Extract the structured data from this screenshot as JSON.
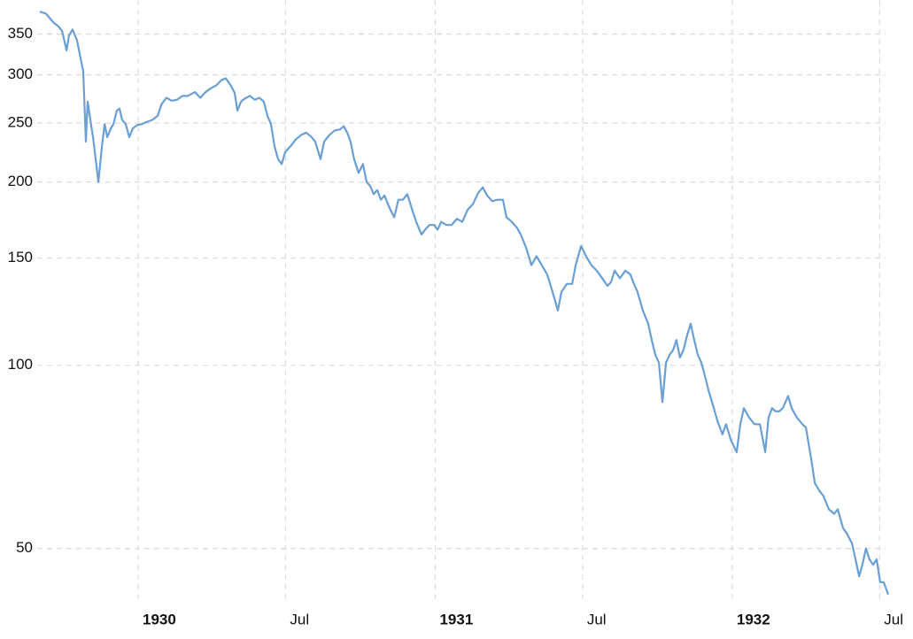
{
  "chart_data": {
    "type": "line",
    "log_y": true,
    "grid": true,
    "xlim": [
      1929.669,
      1932.525
    ],
    "ylim": [
      41,
      385
    ],
    "xticks": [
      1930,
      {
        "value": 1930.496,
        "label": "Jul"
      },
      1931,
      {
        "value": 1931.496,
        "label": "Jul"
      },
      1932,
      {
        "value": 1932.496,
        "label": "Jul"
      }
    ],
    "yticks": [
      50,
      100,
      150,
      200,
      250,
      300,
      350
    ],
    "x": [
      1929.669,
      1929.69,
      1929.714,
      1929.732,
      1929.744,
      1929.759,
      1929.767,
      1929.779,
      1929.794,
      1929.803,
      1929.815,
      1929.824,
      1929.83,
      1929.839,
      1929.848,
      1929.857,
      1929.866,
      1929.878,
      1929.887,
      1929.896,
      1929.908,
      1929.917,
      1929.928,
      1929.937,
      1929.946,
      1929.958,
      1929.97,
      1929.982,
      1929.997,
      1930.012,
      1930.03,
      1930.048,
      1930.066,
      1930.078,
      1930.095,
      1930.113,
      1930.131,
      1930.149,
      1930.167,
      1930.191,
      1930.209,
      1930.227,
      1930.244,
      1930.262,
      1930.28,
      1930.295,
      1930.31,
      1930.325,
      1930.334,
      1930.346,
      1930.358,
      1930.376,
      1930.393,
      1930.408,
      1930.423,
      1930.435,
      1930.447,
      1930.459,
      1930.471,
      1930.483,
      1930.495,
      1930.513,
      1930.531,
      1930.549,
      1930.566,
      1930.584,
      1930.596,
      1930.614,
      1930.626,
      1930.644,
      1930.662,
      1930.68,
      1930.692,
      1930.704,
      1930.715,
      1930.727,
      1930.742,
      1930.757,
      1930.769,
      1930.781,
      1930.793,
      1930.805,
      1930.817,
      1930.829,
      1930.847,
      1930.862,
      1930.876,
      1930.891,
      1930.906,
      1930.921,
      1930.936,
      1930.954,
      1930.966,
      1930.981,
      1930.996,
      1931.008,
      1931.02,
      1931.037,
      1931.055,
      1931.073,
      1931.091,
      1931.109,
      1931.127,
      1931.145,
      1931.16,
      1931.175,
      1931.192,
      1931.21,
      1931.228,
      1931.24,
      1931.258,
      1931.276,
      1931.288,
      1931.306,
      1931.324,
      1931.341,
      1931.359,
      1931.377,
      1931.395,
      1931.413,
      1931.425,
      1931.443,
      1931.461,
      1931.473,
      1931.491,
      1931.508,
      1931.526,
      1931.544,
      1931.562,
      1931.58,
      1931.592,
      1931.604,
      1931.622,
      1931.64,
      1931.657,
      1931.669,
      1931.681,
      1931.699,
      1931.717,
      1931.729,
      1931.741,
      1931.753,
      1931.765,
      1931.777,
      1931.789,
      1931.801,
      1931.812,
      1931.824,
      1931.836,
      1931.848,
      1931.86,
      1931.872,
      1931.884,
      1931.896,
      1931.908,
      1931.92,
      1931.938,
      1931.95,
      1931.967,
      1931.979,
      1931.997,
      1932.015,
      1932.027,
      1932.039,
      1932.057,
      1932.075,
      1932.093,
      1932.111,
      1932.122,
      1932.134,
      1932.146,
      1932.158,
      1932.17,
      1932.188,
      1932.2,
      1932.218,
      1932.236,
      1932.248,
      1932.266,
      1932.278,
      1932.295,
      1932.307,
      1932.325,
      1932.343,
      1932.355,
      1932.373,
      1932.385,
      1932.403,
      1932.415,
      1932.427,
      1932.438,
      1932.45,
      1932.462,
      1932.474,
      1932.486,
      1932.498,
      1932.51,
      1932.525
    ],
    "series": [
      {
        "color": "#6a9fd4",
        "values": [
          381,
          378,
          366,
          360,
          354,
          329,
          348,
          356,
          342,
          325,
          304,
          233,
          271,
          253,
          237,
          218,
          200,
          229,
          249,
          237,
          245,
          249,
          262,
          264,
          253,
          249,
          237,
          245,
          248,
          249,
          251,
          253,
          257,
          268,
          275,
          272,
          273,
          277,
          277,
          281,
          275,
          281,
          285,
          288,
          294,
          296,
          289,
          280,
          262,
          271,
          274,
          277,
          273,
          275,
          271,
          257,
          249,
          229,
          218,
          214,
          224,
          229,
          235,
          239,
          241,
          237,
          233,
          218,
          233,
          239,
          243,
          244,
          247,
          241,
          233,
          218,
          207,
          214,
          200,
          197,
          191,
          194,
          187,
          190,
          181,
          175,
          187,
          187,
          191,
          181,
          172,
          164,
          167,
          170,
          170,
          167,
          172,
          170,
          170,
          174,
          172,
          180,
          184,
          192,
          196,
          190,
          186,
          187,
          187,
          175,
          172,
          168,
          164,
          156,
          146,
          151,
          146,
          141,
          132,
          123,
          132,
          136,
          136,
          146,
          157,
          151,
          146,
          143,
          139,
          135,
          137,
          143,
          139,
          143,
          141,
          136,
          132,
          123,
          117,
          110,
          104,
          101,
          87,
          101,
          104,
          106,
          110,
          103,
          106,
          112,
          117,
          110,
          104,
          101,
          96,
          91,
          85,
          81,
          77,
          80,
          75,
          72,
          80,
          85,
          82,
          80,
          80,
          72,
          82,
          85,
          84,
          84,
          85,
          89,
          85,
          82,
          80,
          79,
          70,
          64,
          62,
          61,
          58,
          57,
          58,
          54,
          53,
          51,
          48,
          45,
          47,
          50,
          48,
          47,
          48,
          44,
          44,
          42
        ]
      }
    ]
  }
}
